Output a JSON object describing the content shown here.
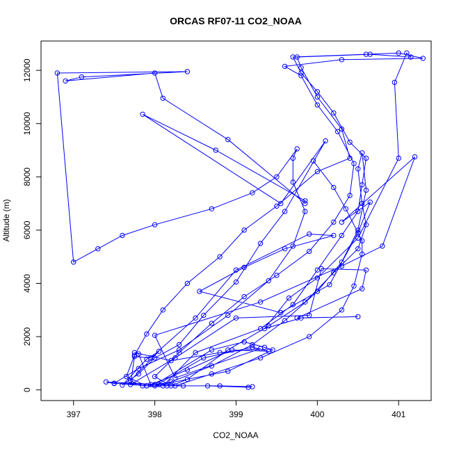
{
  "chart_data": {
    "type": "line",
    "title": "ORCAS RF07-11 CO2_NOAA",
    "xlabel": "CO2_NOAA",
    "ylabel": "Altitude (m)",
    "xlim": [
      396.6,
      401.4
    ],
    "ylim": [
      -400,
      13100
    ],
    "x_ticks": [
      397,
      398,
      399,
      400,
      401
    ],
    "y_ticks": [
      0,
      2000,
      4000,
      6000,
      8000,
      10000,
      12000
    ],
    "x_tick_labels": [
      "397",
      "398",
      "399",
      "400",
      "401"
    ],
    "y_tick_labels": [
      "0",
      "2000",
      "4000",
      "6000",
      "8000",
      "10000",
      "12000"
    ],
    "grid": false,
    "marker": "open-circle",
    "series": [
      {
        "color": "#0000ff",
        "points": [
          [
            398.1,
            150
          ],
          [
            398.5,
            1400
          ],
          [
            399.3,
            2300
          ],
          [
            399.7,
            3200
          ],
          [
            400.0,
            4500
          ],
          [
            400.3,
            5800
          ],
          [
            400.5,
            6700
          ],
          [
            400.55,
            7700
          ],
          [
            400.6,
            8700
          ],
          [
            400.4,
            9300
          ],
          [
            400.2,
            10400
          ],
          [
            400.0,
            11200
          ],
          [
            399.8,
            11900
          ],
          [
            399.7,
            12500
          ],
          [
            400.6,
            12600
          ],
          [
            401.0,
            12650
          ],
          [
            401.3,
            12450
          ],
          [
            400.3,
            12400
          ],
          [
            399.6,
            12150
          ],
          [
            399.8,
            11800
          ],
          [
            400.0,
            10700
          ],
          [
            400.25,
            9700
          ],
          [
            400.45,
            8500
          ],
          [
            400.4,
            7300
          ],
          [
            400.2,
            6300
          ],
          [
            399.9,
            5200
          ],
          [
            399.5,
            4300
          ],
          [
            399.1,
            3500
          ],
          [
            398.7,
            2500
          ],
          [
            398.3,
            1400
          ],
          [
            398.0,
            500
          ],
          [
            398.2,
            150
          ],
          [
            398.4,
            400
          ],
          [
            398.9,
            1500
          ],
          [
            399.4,
            2400
          ],
          [
            399.85,
            3300
          ],
          [
            400.2,
            4400
          ],
          [
            400.5,
            5300
          ],
          [
            400.6,
            6200
          ],
          [
            400.55,
            7000
          ],
          [
            400.5,
            8300
          ],
          [
            400.55,
            8900
          ],
          [
            400.6,
            7500
          ],
          [
            400.5,
            6000
          ],
          [
            400.3,
            4800
          ],
          [
            400.0,
            3700
          ],
          [
            399.6,
            2600
          ],
          [
            399.2,
            1700
          ],
          [
            398.7,
            900
          ],
          [
            398.2,
            300
          ],
          [
            397.9,
            150
          ],
          [
            397.5,
            250
          ],
          [
            397.8,
            800
          ],
          [
            398.3,
            1500
          ],
          [
            398.9,
            2800
          ],
          [
            399.4,
            4100
          ],
          [
            399.7,
            5400
          ],
          [
            399.85,
            6700
          ],
          [
            399.7,
            7800
          ],
          [
            399.7,
            8700
          ],
          [
            399.75,
            9050
          ],
          [
            399.5,
            8000
          ],
          [
            399.2,
            7400
          ],
          [
            398.7,
            6800
          ],
          [
            398.0,
            6200
          ],
          [
            397.6,
            5800
          ],
          [
            397.3,
            5300
          ],
          [
            397.0,
            4800
          ],
          [
            396.8,
            11900
          ],
          [
            398.4,
            11950
          ],
          [
            397.1,
            11750
          ],
          [
            396.9,
            11600
          ],
          [
            398.0,
            11900
          ],
          [
            398.1,
            10950
          ],
          [
            398.9,
            9400
          ],
          [
            399.85,
            7000
          ],
          [
            399.85,
            7100
          ],
          [
            398.75,
            9000
          ],
          [
            397.85,
            10350
          ],
          [
            399.55,
            7000
          ],
          [
            400.1,
            9350
          ],
          [
            399.6,
            6700
          ],
          [
            399.3,
            5500
          ],
          [
            399.0,
            4050
          ],
          [
            398.6,
            2800
          ],
          [
            398.3,
            1700
          ],
          [
            398.0,
            1200
          ],
          [
            397.8,
            600
          ],
          [
            397.6,
            180
          ],
          [
            397.9,
            1150
          ],
          [
            398.05,
            1450
          ],
          [
            397.7,
            350
          ],
          [
            397.85,
            150
          ],
          [
            398.15,
            150
          ],
          [
            398.65,
            150
          ],
          [
            399.15,
            100
          ],
          [
            399.2,
            120
          ],
          [
            398.8,
            150
          ],
          [
            398.35,
            150
          ],
          [
            398.05,
            200
          ],
          [
            397.4,
            300
          ],
          [
            397.5,
            240
          ],
          [
            398.0,
            200
          ],
          [
            398.7,
            1500
          ],
          [
            399.1,
            1800
          ],
          [
            399.35,
            1600
          ],
          [
            399.45,
            1500
          ],
          [
            398.9,
            700
          ],
          [
            398.0,
            150
          ],
          [
            398.6,
            1200
          ],
          [
            399.2,
            1600
          ],
          [
            399.4,
            1450
          ],
          [
            398.95,
            1500
          ],
          [
            398.4,
            750
          ],
          [
            397.95,
            200
          ],
          [
            397.8,
            1350
          ],
          [
            397.75,
            1400
          ],
          [
            398.2,
            1100
          ],
          [
            398.8,
            1400
          ],
          [
            399.3,
            1550
          ],
          [
            398.25,
            450
          ],
          [
            398.0,
            2050
          ],
          [
            399.3,
            3300
          ],
          [
            400.3,
            4650
          ],
          [
            400.8,
            5400
          ],
          [
            401.2,
            8750
          ],
          [
            400.3,
            6300
          ],
          [
            400.65,
            7050
          ],
          [
            400.5,
            5900
          ],
          [
            400.15,
            3950
          ],
          [
            399.55,
            2900
          ],
          [
            398.55,
            3700
          ],
          [
            399.1,
            4600
          ],
          [
            399.6,
            5300
          ],
          [
            400.2,
            5800
          ],
          [
            399.9,
            5850
          ],
          [
            399.0,
            4500
          ],
          [
            398.5,
            2700
          ],
          [
            397.95,
            1200
          ],
          [
            397.75,
            1250
          ],
          [
            397.7,
            200
          ],
          [
            398.25,
            1200
          ],
          [
            399.0,
            2700
          ],
          [
            399.9,
            2800
          ],
          [
            400.05,
            4550
          ],
          [
            400.6,
            4500
          ],
          [
            400.55,
            3800
          ],
          [
            399.75,
            2700
          ],
          [
            400.5,
            2750
          ],
          [
            399.8,
            2700
          ],
          [
            399.35,
            2300
          ],
          [
            399.65,
            3450
          ],
          [
            400.0,
            4200
          ],
          [
            400.5,
            5700
          ],
          [
            401.0,
            8700
          ],
          [
            400.95,
            11550
          ],
          [
            401.1,
            12650
          ],
          [
            401.15,
            12500
          ],
          [
            400.65,
            12600
          ],
          [
            399.75,
            12500
          ],
          [
            399.8,
            12100
          ],
          [
            400.0,
            11000
          ],
          [
            400.3,
            9800
          ],
          [
            400.4,
            8700
          ],
          [
            400.0,
            8200
          ],
          [
            399.5,
            6900
          ],
          [
            399.1,
            6000
          ],
          [
            398.8,
            5000
          ],
          [
            398.4,
            4000
          ],
          [
            398.1,
            3000
          ],
          [
            397.9,
            2100
          ],
          [
            397.75,
            1300
          ],
          [
            397.65,
            500
          ],
          [
            397.9,
            150
          ],
          [
            398.25,
            150
          ],
          [
            398.7,
            600
          ],
          [
            399.3,
            1200
          ],
          [
            399.9,
            2000
          ],
          [
            400.3,
            3000
          ],
          [
            400.45,
            3900
          ],
          [
            400.55,
            5100
          ],
          [
            400.55,
            5600
          ],
          [
            400.35,
            6800
          ],
          [
            400.2,
            7600
          ],
          [
            399.95,
            8600
          ]
        ]
      }
    ]
  }
}
